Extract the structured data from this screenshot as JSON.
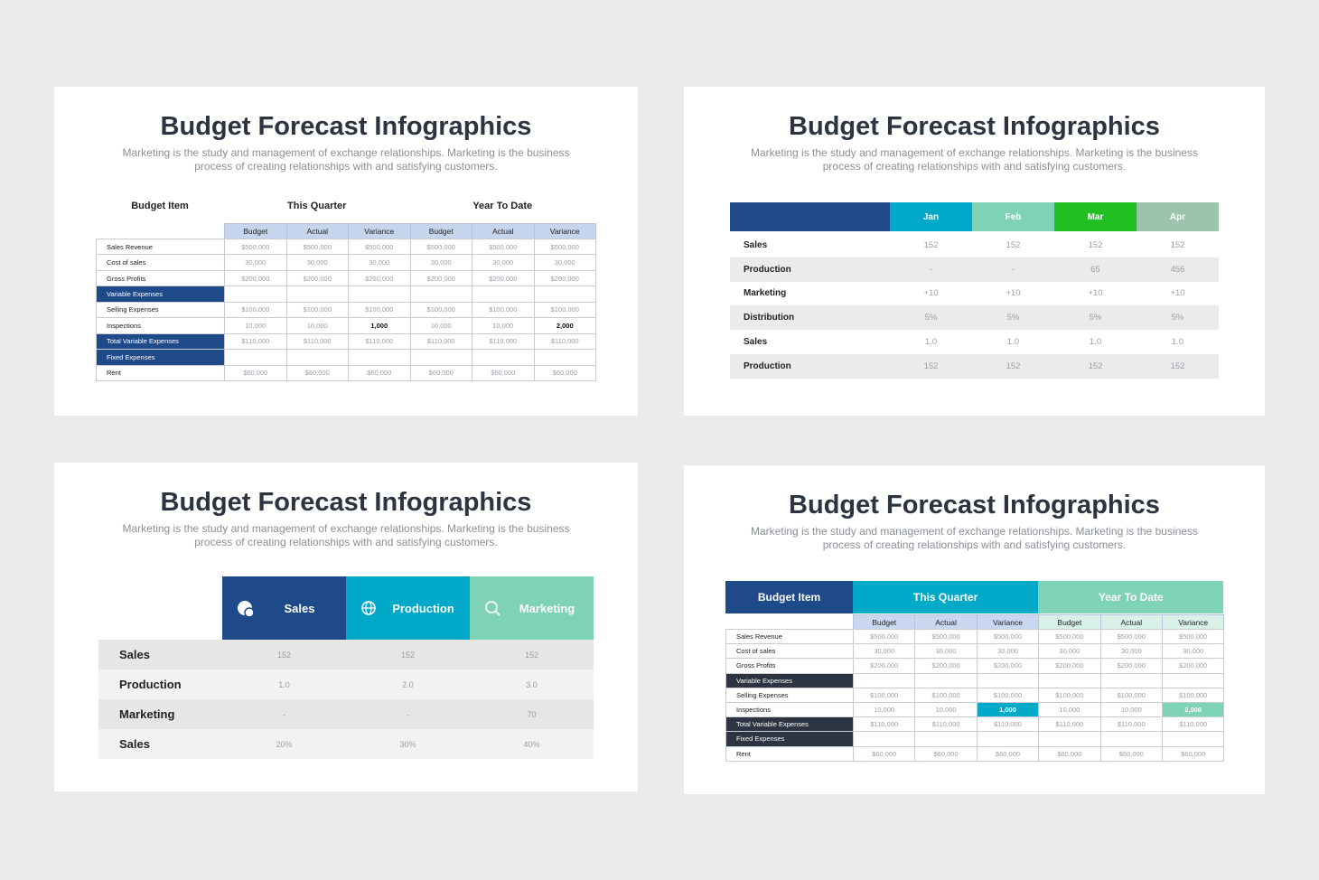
{
  "slides": [
    {
      "title": "Budget Forecast Infographics",
      "subtitle": [
        "Marketing is the study and management of exchange relationships. Marketing is the business",
        "process of creating relationships with and satisfying customers."
      ],
      "table": {
        "groups": [
          {
            "label": "Budget Item"
          },
          {
            "label": "This Quarter",
            "sub_color": "#c5d5ee"
          },
          {
            "label": "Year To Date",
            "sub_color": "#c5d5ee"
          }
        ],
        "columns": [
          "Budget",
          "Actual",
          "Variance",
          "Budget",
          "Actual",
          "Variance"
        ],
        "rows": [
          {
            "label": "Sales Revenue",
            "cells": [
              "$500,000",
              "$500,000",
              "$500,000",
              "$500,000",
              "$500,000",
              "$500,000"
            ]
          },
          {
            "label": "Cost of sales",
            "cells": [
              "30,000",
              "30,000",
              "30,000",
              "30,000",
              "30,000",
              "30,000"
            ]
          },
          {
            "label": "Gross Profits",
            "cells": [
              "$200,000",
              "$200,000",
              "$200,000",
              "$200,000",
              "$200,000",
              "$200,000"
            ]
          },
          {
            "label": "Variable Expenses",
            "section": true,
            "cells": []
          },
          {
            "label": "Selling Expenses",
            "cells": [
              "$100,000",
              "$100,000",
              "$100,000",
              "$100,000",
              "$100,000",
              "$100,000"
            ]
          },
          {
            "label": "Inspections",
            "cells": [
              "10,000",
              "10,000",
              "1,000",
              "10,000",
              "10,000",
              "2,000"
            ]
          },
          {
            "label": "Total Variable Expenses",
            "section": true,
            "cells": [
              "$110,000",
              "$110,000",
              "$110,000",
              "$110,000",
              "$110,000",
              "$110,000"
            ]
          },
          {
            "label": "Fixed Expenses",
            "section": true,
            "cells": []
          },
          {
            "label": "Rent",
            "cells": [
              "$60,000",
              "$60,000",
              "$60,000",
              "$60,000",
              "$60,000",
              "$60,000"
            ]
          }
        ]
      }
    },
    {
      "title": "Budget Forecast Infographics",
      "subtitle": [
        "Marketing is the study and management of exchange relationships. Marketing is the business",
        "process of creating relationships with and satisfying customers."
      ],
      "table": {
        "header_color": "#1f4a8a",
        "columns": [
          {
            "label": "Jan",
            "color": "#00a9c8"
          },
          {
            "label": "Feb",
            "color": "#7dd3b3"
          },
          {
            "label": "Mar",
            "color": "#22bf22"
          },
          {
            "label": "Apr",
            "color": "#9cc4ac"
          }
        ],
        "rows": [
          {
            "label": "Sales",
            "cells": [
              "152",
              "152",
              "152",
              "152"
            ]
          },
          {
            "label": "Production",
            "cells": [
              "-",
              "-",
              "65",
              "456"
            ]
          },
          {
            "label": "Marketing",
            "cells": [
              "+10",
              "+10",
              "+10",
              "+10"
            ]
          },
          {
            "label": "Distribution",
            "cells": [
              "5%",
              "5%",
              "5%",
              "5%"
            ]
          },
          {
            "label": "Sales",
            "cells": [
              "1.0",
              "1.0",
              "1.0",
              "1.0"
            ]
          },
          {
            "label": "Production",
            "cells": [
              "152",
              "152",
              "152",
              "152"
            ]
          }
        ]
      }
    },
    {
      "title": "Budget Forecast Infographics",
      "subtitle": [
        "Marketing is the study and management of exchange relationships. Marketing is the business",
        "process of creating relationships with and satisfying customers."
      ],
      "table": {
        "columns": [
          {
            "label": "Sales",
            "color": "#1f4a8a"
          },
          {
            "label": "Production",
            "color": "#00a9c8"
          },
          {
            "label": "Marketing",
            "color": "#7dd3b3"
          }
        ],
        "rows": [
          {
            "label": "Sales",
            "cells": [
              "152",
              "152",
              "152"
            ]
          },
          {
            "label": "Production",
            "cells": [
              "1.0",
              "2.0",
              "3.0"
            ]
          },
          {
            "label": "Marketing",
            "cells": [
              "-",
              "-",
              "70"
            ]
          },
          {
            "label": "Sales",
            "cells": [
              "20%",
              "30%",
              "40%"
            ]
          }
        ]
      }
    },
    {
      "title": "Budget Forecast Infographics",
      "subtitle": [
        "Marketing is the study and management of exchange relationships. Marketing is the business",
        "process of creating relationships with and satisfying customers."
      ],
      "table": {
        "groups": [
          {
            "label": "Budget Item",
            "color": "#1f4a8a"
          },
          {
            "label": "This Quarter",
            "color": "#00a9c8",
            "sub_color": "#c9d8f0"
          },
          {
            "label": "Year To Date",
            "color": "#7dd3b3",
            "sub_color": "#d8f2e9"
          }
        ],
        "columns": [
          "Budget",
          "Actual",
          "Variance",
          "Budget",
          "Actual",
          "Variance"
        ],
        "rows": [
          {
            "label": "Sales Revenue",
            "cells": [
              "$500,000",
              "$500,000",
              "$500,000",
              "$500,000",
              "$500,000",
              "$500,000"
            ]
          },
          {
            "label": "Cost of sales",
            "cells": [
              "30,000",
              "30,000",
              "30,000",
              "30,000",
              "30,000",
              "30,000"
            ]
          },
          {
            "label": "Gross Profits",
            "cells": [
              "$200,000",
              "$200,000",
              "$200,000",
              "$200,000",
              "$200,000",
              "$200,000"
            ]
          },
          {
            "label": "Variable Expenses",
            "section": true,
            "cells": []
          },
          {
            "label": "Selling Expenses",
            "cells": [
              "$100,000",
              "$100,000",
              "$100,000",
              "$100,000",
              "$100,000",
              "$100,000"
            ]
          },
          {
            "label": "Inspections",
            "cells": [
              "10,000",
              "10,000",
              "1,000",
              "10,000",
              "10,000",
              "2,000"
            ]
          },
          {
            "label": "Total Variable Expenses",
            "section": true,
            "cells": [
              "$110,000",
              "$110,000",
              "$110,000",
              "$110,000",
              "$110,000",
              "$110,000"
            ]
          },
          {
            "label": "Fixed Expenses",
            "section": true,
            "cells": []
          },
          {
            "label": "Rent",
            "cells": [
              "$60,000",
              "$60,000",
              "$60,000",
              "$60,000",
              "$60,000",
              "$60,000"
            ]
          }
        ]
      }
    }
  ]
}
